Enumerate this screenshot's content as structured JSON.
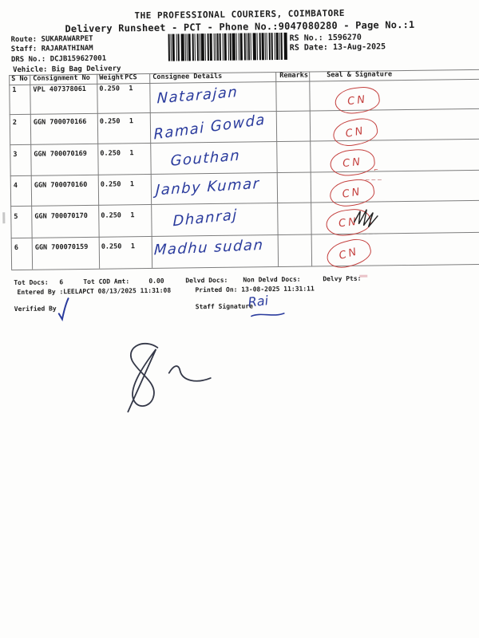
{
  "doc": {
    "title": "THE PROFESSIONAL COURIERS, COIMBATORE",
    "subtitle": "Delivery Runsheet - PCT - Phone No.:9047080280 - Page No.:1",
    "info": {
      "route": "Route: SUKARAWARPET",
      "staff": "Staff: RAJARATHINAM",
      "drs_no": "DRS No.: DCJB159627001",
      "vehicle": "Vehicle: Big Bag Delivery",
      "rs_no": "RS No.: 1596270",
      "rs_date": "RS Date: 13-Aug-2025"
    },
    "barcode_icon": "code128-barcode"
  },
  "table": {
    "headers": {
      "s_no": "S No",
      "consignment_no": "Consignment No",
      "weight": "Weight",
      "pcs": "PCS",
      "consignee": "Consignee Details",
      "remarks": "Remarks",
      "seal": "Seal & Signature"
    },
    "rows": [
      {
        "s_no": "1",
        "consignment_no": "VPL 407378061",
        "weight": "0.250",
        "pcs": "1",
        "consignee_handwritten": "Natarajan",
        "remarks": "",
        "seal_handwritten": "CN",
        "ink_marks": []
      },
      {
        "s_no": "2",
        "consignment_no": "GGN 700070166",
        "weight": "0.250",
        "pcs": "1",
        "consignee_handwritten": "Ramai Gowda",
        "remarks": "",
        "seal_handwritten": "CN",
        "ink_marks": []
      },
      {
        "s_no": "3",
        "consignment_no": "GGN 700070169",
        "weight": "0.250",
        "pcs": "1",
        "consignee_handwritten": "Gouthan",
        "remarks": "",
        "seal_handwritten": "CN",
        "ink_marks": [
          "red-tick"
        ]
      },
      {
        "s_no": "4",
        "consignment_no": "GGN 700070160",
        "weight": "0.250",
        "pcs": "1",
        "consignee_handwritten": "Janby Kumar",
        "remarks": "",
        "seal_handwritten": "CN",
        "ink_marks": [
          "red-dashes"
        ]
      },
      {
        "s_no": "5",
        "consignment_no": "GGN 700070170",
        "weight": "0.250",
        "pcs": "1",
        "consignee_handwritten": "Dhanraj",
        "remarks": "",
        "seal_handwritten": "CN",
        "ink_marks": [
          "black-scribble",
          "gray-dashes"
        ]
      },
      {
        "s_no": "6",
        "consignment_no": "GGN 700070159",
        "weight": "0.250",
        "pcs": "1",
        "consignee_handwritten": "Madhu sudan",
        "remarks": "",
        "seal_handwritten": "CN",
        "ink_marks": []
      }
    ]
  },
  "summary": {
    "tot_docs_label": "Tot Docs:",
    "tot_docs_value": "6",
    "tot_cod_label": "Tot COD Amt:",
    "tot_cod_value": "0.00",
    "delvd_docs_label": "Delvd Docs:",
    "delvd_docs_value": "",
    "non_delvd_docs_label": "Non Delvd Docs:",
    "non_delvd_docs_value": "",
    "delvy_pts_label": "Delvy Pts:",
    "delvy_pts_value": "",
    "entered_by": "Entered By :LEELAPCT 08/13/2025 11:31:08",
    "printed_on": "Printed On: 13-08-2025 11:31:11"
  },
  "signatures": {
    "verified_by_label": "Verified By",
    "verified_by_mark": "pen-tick",
    "staff_signature_label": "Staff Signature",
    "staff_signature_handwritten": "Rai",
    "courier_signature_mark": "handwritten-signature"
  },
  "colors": {
    "ink_blue": "#2a3b9d",
    "ink_red": "#c4403e",
    "print_black": "#1d1d1d",
    "line_gray": "#7d7d7d",
    "paper": "#fdfdfc"
  }
}
